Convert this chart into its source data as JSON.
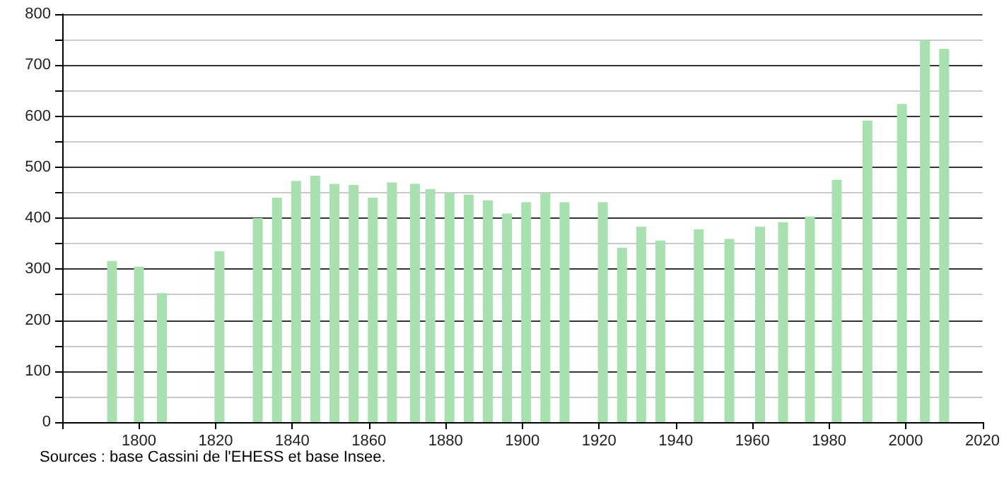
{
  "chart_data": {
    "type": "bar",
    "x": [
      1793,
      1800,
      1806,
      1821,
      1831,
      1836,
      1841,
      1846,
      1851,
      1856,
      1861,
      1866,
      1872,
      1876,
      1881,
      1886,
      1891,
      1896,
      1901,
      1906,
      1911,
      1921,
      1926,
      1931,
      1936,
      1946,
      1954,
      1962,
      1968,
      1975,
      1982,
      1990,
      1999,
      2005,
      2010
    ],
    "values": [
      316,
      305,
      253,
      335,
      400,
      440,
      473,
      483,
      467,
      465,
      440,
      470,
      467,
      457,
      449,
      446,
      435,
      409,
      431,
      449,
      431,
      431,
      342,
      383,
      356,
      378,
      359,
      383,
      392,
      403,
      475,
      591,
      624,
      750,
      732
    ],
    "color": "#a8e0b0",
    "xlim": [
      1780,
      2020
    ],
    "xticks": [
      {
        "value": 1780,
        "label": null
      },
      1800,
      1820,
      1840,
      1860,
      1880,
      1900,
      1920,
      1940,
      1960,
      1980,
      2000,
      2020
    ],
    "ylim": [
      0,
      800
    ],
    "yticks": [
      0,
      {
        "value": 50,
        "label": null
      },
      100,
      {
        "value": 150,
        "label": null
      },
      200,
      {
        "value": 250,
        "label": null
      },
      300,
      {
        "value": 350,
        "label": null
      },
      400,
      {
        "value": 450,
        "label": null
      },
      500,
      {
        "value": 550,
        "label": null
      },
      600,
      {
        "value": 650,
        "label": null
      },
      700,
      {
        "value": 750,
        "label": null
      },
      800
    ],
    "grid": "y",
    "annotations": [
      "Sources : base Cassini de l'EHESS et base Insee."
    ]
  }
}
